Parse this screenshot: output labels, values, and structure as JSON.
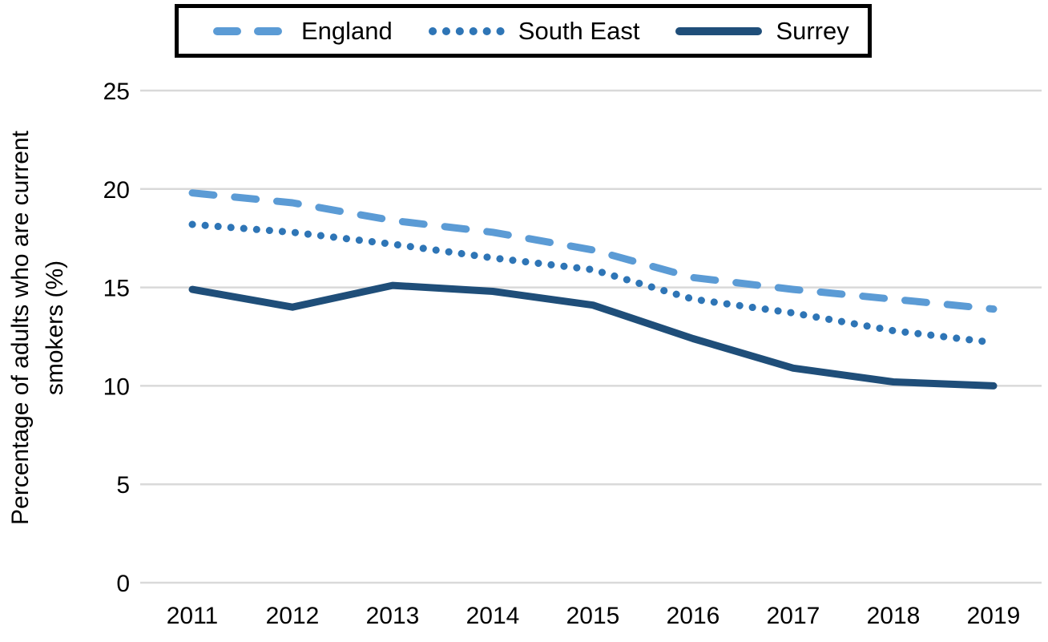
{
  "chart_data": {
    "type": "line",
    "title": "",
    "xlabel": "",
    "ylabel": "Percentage of adults who are current smokers (%)",
    "ylabel_lines": [
      "Percentage of adults who are current",
      "smokers (%)"
    ],
    "categories": [
      "2011",
      "2012",
      "2013",
      "2014",
      "2015",
      "2016",
      "2017",
      "2018",
      "2019"
    ],
    "series": [
      {
        "name": "England",
        "style": "dashed",
        "color": "#5B9BD5",
        "values": [
          19.8,
          19.3,
          18.4,
          17.8,
          16.9,
          15.5,
          14.9,
          14.4,
          13.9
        ]
      },
      {
        "name": "South East",
        "style": "dotted",
        "color": "#2E75B6",
        "values": [
          18.2,
          17.8,
          17.2,
          16.5,
          15.9,
          14.4,
          13.7,
          12.8,
          12.2
        ]
      },
      {
        "name": "Surrey",
        "style": "solid",
        "color": "#1F4E79",
        "values": [
          14.9,
          14.0,
          15.1,
          14.8,
          14.1,
          12.4,
          10.9,
          10.2,
          10.0
        ]
      }
    ],
    "yticks": [
      0,
      5,
      10,
      15,
      20,
      25
    ],
    "ylim": [
      0,
      25
    ],
    "grid": "horizontal",
    "gridline_color": "#D9D9D9",
    "text_color": "#000000",
    "background_color": "#FFFFFF",
    "legend": {
      "position": "top",
      "border_color": "#000000",
      "items": [
        "England",
        "South East",
        "Surrey"
      ]
    }
  }
}
